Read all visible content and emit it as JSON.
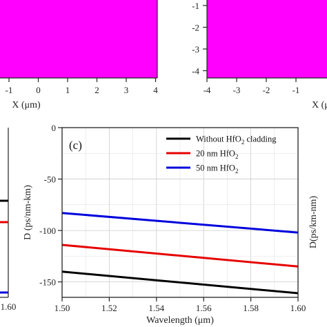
{
  "colors": {
    "field": "#ff00ff",
    "black_series": "#000000",
    "red_series": "#e60000",
    "blue_series": "#0000dd",
    "grid": "#cccccc"
  },
  "top_left": {
    "x_ticks": [
      "-1",
      "0",
      "1",
      "2",
      "3",
      "4"
    ],
    "xlabel": "X (μm)"
  },
  "top_right": {
    "x_ticks": [
      "-4",
      "-3",
      "-2",
      "-1"
    ],
    "y_ticks": [
      "-1",
      "-2",
      "-3",
      "-4"
    ],
    "xlabel": "X (μ"
  },
  "bottom_left": {
    "x_tick": "1.60"
  },
  "chart_data": {
    "type": "line",
    "panel_label": "(c)",
    "xlabel": "Wavelength (μm)",
    "ylabel": "D (ps/nm-km)",
    "right_ylabel": "D(ps/km-nm)",
    "xlim": [
      1.5,
      1.6
    ],
    "ylim": [
      -165,
      0
    ],
    "x_ticks": [
      "1.50",
      "1.52",
      "1.54",
      "1.56",
      "1.58",
      "1.60"
    ],
    "y_ticks": [
      "0",
      "-50",
      "-100",
      "-150"
    ],
    "grid": true,
    "legend_position": "top-right",
    "x": [
      1.5,
      1.6
    ],
    "series": [
      {
        "name_main": "Without HfO",
        "name_sub": "2",
        "name_tail": " cladding",
        "values": [
          -140,
          -161
        ]
      },
      {
        "name_main": "20 nm HfO",
        "name_sub": "2",
        "name_tail": "",
        "values": [
          -114,
          -135
        ]
      },
      {
        "name_main": "50 nm HfO",
        "name_sub": "2",
        "name_tail": "",
        "values": [
          -83,
          -102
        ]
      }
    ]
  }
}
